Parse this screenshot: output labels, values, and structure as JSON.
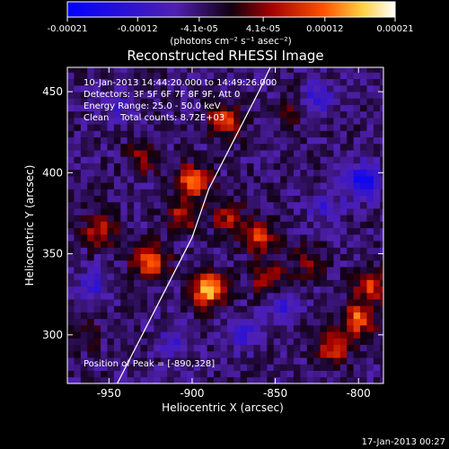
{
  "app": {
    "timestamp": "17-Jan-2013 00:27"
  },
  "colorbar": {
    "tick_labels": [
      "-0.00021",
      "-0.00012",
      "-4.1e-05",
      "4.1e-05",
      "0.00012",
      "0.00021"
    ],
    "tick_values": [
      -0.00021,
      -0.00012,
      -4.1e-05,
      4.1e-05,
      0.00012,
      0.00021
    ],
    "units": "(photons cm⁻² s⁻¹ asec⁻²)",
    "vmin": -0.00021,
    "vmax": 0.00021
  },
  "chart_data": {
    "type": "heatmap",
    "title": "Reconstructed RHESSI Image",
    "xlabel": "Heliocentric X (arcsec)",
    "ylabel": "Heliocentric Y (arcsec)",
    "xlim": [
      -975,
      -785
    ],
    "ylim": [
      270,
      465
    ],
    "x_ticks": [
      -950,
      -900,
      -850,
      -800
    ],
    "x_tick_labels": [
      "-950",
      "-900",
      "-850",
      "-800"
    ],
    "y_ticks": [
      300,
      350,
      400,
      450
    ],
    "y_tick_labels": [
      "300",
      "350",
      "400",
      "450"
    ],
    "grid": false,
    "annotations": [
      "10-Jan-2013 14:44:20.000 to 14:49:26.000",
      "Detectors: 3F 5F 6F 7F 8F 9F, Att 0",
      "Energy Range: 25.0 - 50.0 keV",
      "Clean    Total counts: 8.72E+03"
    ],
    "peak_label": "Position of Peak = [-890,328]",
    "peak": [
      -890,
      328
    ],
    "limb": [
      [
        -945,
        270
      ],
      [
        -930,
        300
      ],
      [
        -915,
        330
      ],
      [
        -900,
        360
      ],
      [
        -890,
        390
      ],
      [
        -875,
        420
      ],
      [
        -860,
        450
      ],
      [
        -853,
        465
      ]
    ],
    "hotspots": [
      {
        "x": -890,
        "y": 328,
        "value": 0.00021
      },
      {
        "x": -900,
        "y": 395,
        "value": 0.00016
      },
      {
        "x": -880,
        "y": 432,
        "value": 0.00013
      },
      {
        "x": -925,
        "y": 345,
        "value": 0.00016
      },
      {
        "x": -955,
        "y": 365,
        "value": 0.00011
      },
      {
        "x": -930,
        "y": 410,
        "value": 8e-05
      },
      {
        "x": -905,
        "y": 375,
        "value": 0.0001
      },
      {
        "x": -878,
        "y": 372,
        "value": 9e-05
      },
      {
        "x": -860,
        "y": 360,
        "value": 0.00012
      },
      {
        "x": -855,
        "y": 335,
        "value": 0.0001
      },
      {
        "x": -800,
        "y": 310,
        "value": 0.00015
      },
      {
        "x": -792,
        "y": 330,
        "value": 0.00012
      },
      {
        "x": -815,
        "y": 292,
        "value": 0.00011
      },
      {
        "x": -830,
        "y": 345,
        "value": 7e-05
      },
      {
        "x": -965,
        "y": 300,
        "value": 5e-05
      },
      {
        "x": -840,
        "y": 440,
        "value": 5e-05
      }
    ],
    "coldspots": [
      {
        "x": -797,
        "y": 395,
        "value": -0.00014
      },
      {
        "x": -825,
        "y": 445,
        "value": -8e-05
      },
      {
        "x": -845,
        "y": 318,
        "value": -8e-05
      },
      {
        "x": -960,
        "y": 330,
        "value": -7e-05
      },
      {
        "x": -910,
        "y": 295,
        "value": -6e-05
      },
      {
        "x": -870,
        "y": 300,
        "value": -7e-05
      },
      {
        "x": -820,
        "y": 380,
        "value": -6e-05
      },
      {
        "x": -945,
        "y": 440,
        "value": -5e-05
      }
    ]
  }
}
